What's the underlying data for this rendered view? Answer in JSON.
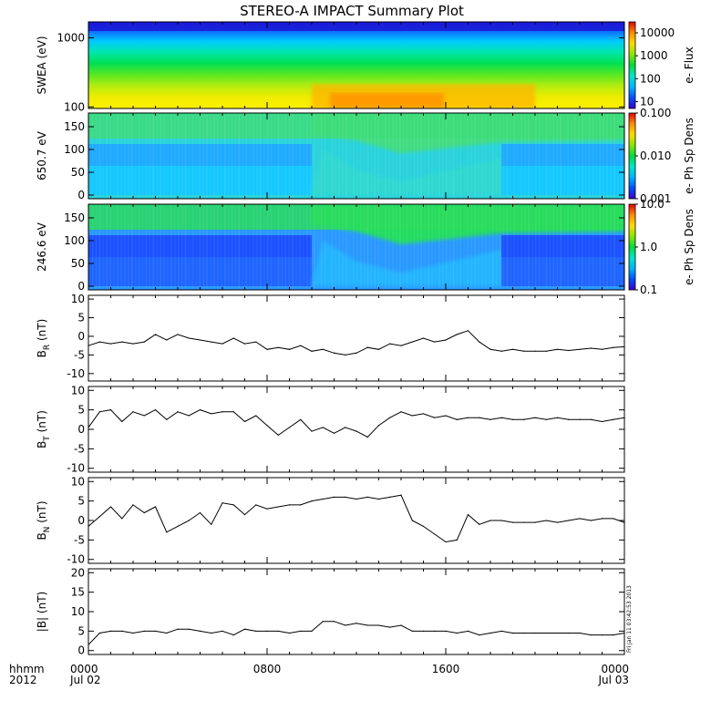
{
  "title": "STEREO-A IMPACT Summary Plot",
  "stamp": "Fri Jan 11 03:42:53 2013",
  "time_axis": {
    "left_labels": [
      "hhmm",
      "2012"
    ],
    "ticks": [
      {
        "hour": 0,
        "lines": [
          "0000",
          "Jul 02"
        ]
      },
      {
        "hour": 8,
        "lines": [
          "0800",
          ""
        ]
      },
      {
        "hour": 16,
        "lines": [
          "1600",
          ""
        ]
      },
      {
        "hour": 24,
        "lines": [
          "0000",
          "Jul 03"
        ]
      }
    ],
    "minor_every_hours": 1,
    "range_hours": [
      0,
      24
    ]
  },
  "colors": {
    "line": "#000000",
    "spectrogram_scale": [
      "#3a00c8",
      "#0050ff",
      "#00b4ff",
      "#00e6c8",
      "#00dc3c",
      "#8ce600",
      "#ffdc00",
      "#ff8c00",
      "#e60000"
    ]
  },
  "chart_data": [
    {
      "type": "heatmap",
      "name": "swea",
      "ylabel": "SWEA (eV)",
      "yscale": "log",
      "ylim": [
        95,
        1700
      ],
      "yticks": [
        {
          "v": 100,
          "label": "100"
        },
        {
          "v": 1000,
          "label": "1000"
        }
      ],
      "colorbar": {
        "scale": "log",
        "range": [
          5,
          30000
        ],
        "ticks": [
          {
            "v": 10,
            "label": "10"
          },
          {
            "v": 100,
            "label": "100"
          },
          {
            "v": 1000,
            "label": "1000"
          },
          {
            "v": 10000,
            "label": "10000"
          }
        ],
        "label": "e- Flux"
      }
    },
    {
      "type": "heatmap",
      "name": "pad650",
      "ylabel": "650.7 eV",
      "ylim": [
        -8,
        180
      ],
      "yticks": [
        {
          "v": 0,
          "label": "0"
        },
        {
          "v": 50,
          "label": "50"
        },
        {
          "v": 100,
          "label": "100"
        },
        {
          "v": 150,
          "label": "150"
        }
      ],
      "colorbar": {
        "scale": "log",
        "range": [
          0.001,
          0.1
        ],
        "ticks": [
          {
            "v": 0.001,
            "label": "0.001"
          },
          {
            "v": 0.01,
            "label": "0.010"
          },
          {
            "v": 0.1,
            "label": "0.100"
          }
        ],
        "label": "e- Ph Sp Dens"
      }
    },
    {
      "type": "heatmap",
      "name": "pad246",
      "ylabel": "246.6 eV",
      "ylim": [
        -8,
        180
      ],
      "yticks": [
        {
          "v": 0,
          "label": "0"
        },
        {
          "v": 50,
          "label": "50"
        },
        {
          "v": 100,
          "label": "100"
        },
        {
          "v": 150,
          "label": "150"
        }
      ],
      "colorbar": {
        "scale": "log",
        "range": [
          0.1,
          10
        ],
        "ticks": [
          {
            "v": 0.1,
            "label": "0.1"
          },
          {
            "v": 1,
            "label": "1.0"
          },
          {
            "v": 10,
            "label": "10.0"
          }
        ],
        "label": "e- Ph Sp Dens"
      }
    },
    {
      "type": "line",
      "name": "br",
      "ylabel": "B_R (nT)",
      "ylabel_main": "B",
      "ylabel_sub": "R",
      "ylabel_unit": " (nT)",
      "ylim": [
        -12,
        11
      ],
      "yticks": [
        -10,
        -5,
        0,
        5,
        10
      ],
      "zero_line": false,
      "x": [
        0,
        0.5,
        1,
        1.5,
        2,
        2.5,
        3,
        3.5,
        4,
        4.5,
        5,
        5.5,
        6,
        6.5,
        7,
        7.5,
        8,
        8.5,
        9,
        9.5,
        10,
        10.5,
        11,
        11.5,
        12,
        12.5,
        13,
        13.5,
        14,
        14.5,
        15,
        15.5,
        16,
        16.5,
        17,
        17.5,
        18,
        18.5,
        19,
        19.5,
        20,
        20.5,
        21,
        21.5,
        22,
        22.5,
        23,
        23.5,
        24
      ],
      "y": [
        -2.5,
        -1.5,
        -2,
        -1.5,
        -2,
        -1.5,
        0.5,
        -1,
        0.5,
        -0.5,
        -1,
        -1.5,
        -2,
        -0.5,
        -2,
        -1.5,
        -3.5,
        -3,
        -3.5,
        -2.5,
        -4,
        -3.5,
        -4.5,
        -5,
        -4.5,
        -3,
        -3.5,
        -2,
        -2.5,
        -1.5,
        -0.5,
        -1.5,
        -1,
        0.5,
        1.5,
        -1.5,
        -3.5,
        -4,
        -3.5,
        -4,
        -4,
        -4,
        -3.5,
        -3.8,
        -3.5,
        -3.2,
        -3.5,
        -3,
        -2.8
      ]
    },
    {
      "type": "line",
      "name": "bt",
      "ylabel": "B_T (nT)",
      "ylabel_main": "B",
      "ylabel_sub": "T",
      "ylabel_unit": " (nT)",
      "ylim": [
        -11,
        11
      ],
      "yticks": [
        -10,
        -5,
        0,
        5,
        10
      ],
      "zero_line": false,
      "x": [
        0,
        0.5,
        1,
        1.5,
        2,
        2.5,
        3,
        3.5,
        4,
        4.5,
        5,
        5.5,
        6,
        6.5,
        7,
        7.5,
        8,
        8.5,
        9,
        9.5,
        10,
        10.5,
        11,
        11.5,
        12,
        12.5,
        13,
        13.5,
        14,
        14.5,
        15,
        15.5,
        16,
        16.5,
        17,
        17.5,
        18,
        18.5,
        19,
        19.5,
        20,
        20.5,
        21,
        21.5,
        22,
        22.5,
        23,
        23.5,
        24
      ],
      "y": [
        0.5,
        4.5,
        5,
        2,
        4.5,
        3.5,
        5,
        2.5,
        4.5,
        3.5,
        5,
        4,
        4.5,
        4.5,
        2,
        3.5,
        1,
        -1.5,
        0.5,
        2.5,
        -0.5,
        0.5,
        -1,
        0.5,
        -0.5,
        -2,
        1,
        3,
        4.5,
        3.5,
        4,
        3,
        3.5,
        2.5,
        3,
        3,
        2.5,
        3,
        2.5,
        2.5,
        3,
        2.5,
        3,
        2.5,
        2.5,
        2.5,
        2,
        2.5,
        3
      ]
    },
    {
      "type": "line",
      "name": "bn",
      "ylabel": "B_N (nT)",
      "ylabel_main": "B",
      "ylabel_sub": "N",
      "ylabel_unit": " (nT)",
      "ylim": [
        -11,
        11
      ],
      "yticks": [
        -10,
        -5,
        0,
        5,
        10
      ],
      "zero_line": false,
      "x": [
        0,
        0.5,
        1,
        1.5,
        2,
        2.5,
        3,
        3.5,
        4,
        4.5,
        5,
        5.5,
        6,
        6.5,
        7,
        7.5,
        8,
        8.5,
        9,
        9.5,
        10,
        10.5,
        11,
        11.5,
        12,
        12.5,
        13,
        13.5,
        14,
        14.5,
        15,
        15.5,
        16,
        16.5,
        17,
        17.5,
        18,
        18.5,
        19,
        19.5,
        20,
        20.5,
        21,
        21.5,
        22,
        22.5,
        23,
        23.5,
        24
      ],
      "y": [
        -1.5,
        1,
        3.5,
        0.5,
        4,
        2,
        3.5,
        -3,
        -1.5,
        0,
        2,
        -1,
        4.5,
        4,
        1.5,
        4,
        3,
        3.5,
        4,
        4,
        5,
        5.5,
        6,
        6,
        5.5,
        6,
        5.5,
        6,
        6.5,
        0,
        -1.5,
        -3.5,
        -5.5,
        -5,
        1.5,
        -1,
        0,
        0,
        -0.5,
        -0.5,
        -0.5,
        0,
        -0.5,
        0,
        0.5,
        0,
        0.5,
        0.5,
        -0.5
      ]
    },
    {
      "type": "line",
      "name": "bmag",
      "ylabel": "|B| (nT)",
      "ylabel_main": "|B| (nT)",
      "ylabel_sub": "",
      "ylabel_unit": "",
      "ylim": [
        -1,
        21
      ],
      "yticks": [
        0,
        5,
        10,
        15,
        20
      ],
      "zero_line": false,
      "x": [
        0,
        0.5,
        1,
        1.5,
        2,
        2.5,
        3,
        3.5,
        4,
        4.5,
        5,
        5.5,
        6,
        6.5,
        7,
        7.5,
        8,
        8.5,
        9,
        9.5,
        10,
        10.5,
        11,
        11.5,
        12,
        12.5,
        13,
        13.5,
        14,
        14.5,
        15,
        15.5,
        16,
        16.5,
        17,
        17.5,
        18,
        18.5,
        19,
        19.5,
        20,
        20.5,
        21,
        21.5,
        22,
        22.5,
        23,
        23.5,
        24
      ],
      "y": [
        1.5,
        4.5,
        5,
        5,
        4.5,
        5,
        5,
        4.5,
        5.5,
        5.5,
        5,
        4.5,
        5,
        4,
        5.5,
        5,
        5,
        5,
        4.5,
        5,
        5,
        7.5,
        7.5,
        6.5,
        7,
        6.5,
        6.5,
        6,
        6.5,
        5,
        5,
        5,
        5,
        4.5,
        5,
        4,
        4.5,
        5,
        4.5,
        4.5,
        4.5,
        4.5,
        4.5,
        4.5,
        4.5,
        4,
        4,
        4,
        4.5
      ]
    }
  ]
}
